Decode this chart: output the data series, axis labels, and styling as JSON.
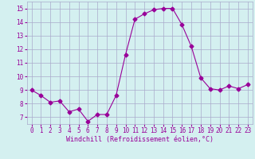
{
  "x": [
    0,
    1,
    2,
    3,
    4,
    5,
    6,
    7,
    8,
    9,
    10,
    11,
    12,
    13,
    14,
    15,
    16,
    17,
    18,
    19,
    20,
    21,
    22,
    23
  ],
  "y": [
    9.0,
    8.6,
    8.1,
    8.2,
    7.4,
    7.6,
    6.7,
    7.2,
    7.2,
    8.6,
    11.6,
    14.2,
    14.6,
    14.9,
    15.0,
    15.0,
    13.8,
    12.2,
    9.9,
    9.1,
    9.0,
    9.3,
    9.1,
    9.4
  ],
  "line_color": "#990099",
  "marker": "D",
  "marker_size": 2.5,
  "xlabel": "Windchill (Refroidissement éolien,°C)",
  "xlabel_color": "#990099",
  "ylabel_ticks": [
    7,
    8,
    9,
    10,
    11,
    12,
    13,
    14,
    15
  ],
  "xticks": [
    0,
    1,
    2,
    3,
    4,
    5,
    6,
    7,
    8,
    9,
    10,
    11,
    12,
    13,
    14,
    15,
    16,
    17,
    18,
    19,
    20,
    21,
    22,
    23
  ],
  "xlim": [
    -0.5,
    23.5
  ],
  "ylim": [
    6.5,
    15.5
  ],
  "bg_color": "#d4f0f0",
  "grid_color": "#aaaacc",
  "tick_color": "#990099",
  "font_family": "monospace",
  "tick_fontsize": 5.5,
  "xlabel_fontsize": 6.0
}
